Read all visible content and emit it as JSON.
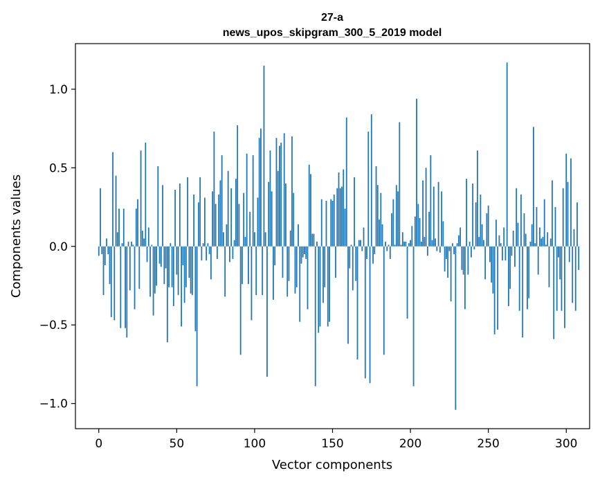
{
  "chart_data": {
    "type": "bar",
    "title_line1": "27-a",
    "title_line2": "news_upos_skipgram_300_5_2019 model",
    "xlabel": "Vector components",
    "ylabel": "Components values",
    "xlim": [
      -15,
      315
    ],
    "ylim": [
      -1.16,
      1.29
    ],
    "xticks": [
      0,
      50,
      100,
      150,
      200,
      250,
      300
    ],
    "xtick_labels": [
      "0",
      "50",
      "100",
      "150",
      "200",
      "250",
      "300"
    ],
    "yticks": [
      -1.0,
      -0.5,
      0.0,
      0.5,
      1.0
    ],
    "ytick_labels": [
      "−1.0",
      "−0.5",
      "0.0",
      "0.5",
      "1.0"
    ],
    "bar_color": "#1f77b4",
    "grid": false,
    "legend": "none",
    "values": [
      -0.06,
      0.37,
      -0.05,
      -0.31,
      -0.12,
      0.05,
      -0.05,
      -0.24,
      -0.45,
      0.6,
      -0.47,
      0.45,
      0.09,
      0.24,
      -0.52,
      0.02,
      0.24,
      -0.52,
      -0.58,
      0.03,
      -0.28,
      0.03,
      0.01,
      -0.4,
      0.24,
      0.3,
      -0.27,
      0.61,
      0.1,
      0.05,
      0.66,
      -0.1,
      0.12,
      -0.32,
      0.01,
      -0.44,
      -0.3,
      -0.25,
      0.51,
      -0.11,
      -0.13,
      0.39,
      -0.24,
      -0.14,
      -0.61,
      -0.26,
      0.02,
      -0.26,
      -0.38,
      0.36,
      -0.18,
      -0.31,
      0.4,
      -0.51,
      -0.12,
      -0.36,
      -0.26,
      0.44,
      -0.2,
      -0.3,
      -0.31,
      0.33,
      -0.54,
      -0.89,
      0.28,
      0.44,
      -0.09,
      0.02,
      0.31,
      -0.09,
      0.02,
      -0.05,
      -0.21,
      0.35,
      0.73,
      0.27,
      -0.08,
      0.33,
      0.42,
      0.58,
      0.09,
      -0.32,
      0.14,
      0.48,
      -0.1,
      0.37,
      -0.08,
      0.04,
      0.43,
      0.77,
      0.27,
      -0.69,
      -0.24,
      0.34,
      0.06,
      0.59,
      -0.24,
      0.22,
      -0.47,
      0.58,
      0.09,
      -0.31,
      0.31,
      0.69,
      0.75,
      -0.31,
      1.15,
      0.09,
      -0.83,
      0.41,
      0.61,
      0.35,
      -0.34,
      -0.12,
      0.69,
      0.48,
      0.64,
      0.66,
      -0.2,
      0.72,
      0.4,
      -0.32,
      -0.22,
      0.1,
      0.7,
      0.34,
      -0.3,
      -0.26,
      0.14,
      -0.48,
      -0.11,
      -0.07,
      -0.05,
      -0.08,
      -0.4,
      0.52,
      0.46,
      0.08,
      0.08,
      -0.89,
      0.03,
      -0.55,
      -0.51,
      0.3,
      -0.36,
      -0.26,
      0.29,
      -0.51,
      -0.48,
      0.3,
      0.29,
      0.33,
      -0.2,
      0.37,
      0.47,
      0.37,
      0.38,
      0.49,
      0.24,
      0.82,
      -0.62,
      -0.14,
      0.01,
      -0.28,
      0.44,
      -0.22,
      -0.72,
      0.04,
      0.04,
      -0.03,
      0.12,
      -0.84,
      -0.08,
      0.73,
      -0.87,
      0.84,
      -0.11,
      -0.05,
      0.51,
      0.39,
      0.17,
      0.34,
      0.14,
      -0.69,
      0.03,
      -0.03,
      0.01,
      -0.08,
      0.21,
      0.3,
      0.01,
      0.39,
      0.35,
      0.79,
      0.01,
      0.09,
      0.03,
      0.03,
      -0.46,
      0.02,
      0.04,
      0.13,
      -0.89,
      0.19,
      0.94,
      0.27,
      0.18,
      0.03,
      0.42,
      0.06,
      0.5,
      -0.06,
      0.22,
      0.58,
      0.04,
      0.38,
      0.05,
      -0.03,
      0.41,
      -0.04,
      0.35,
      0.16,
      -0.16,
      -0.08,
      -0.2,
      -0.03,
      -0.35,
      0.02,
      -0.05,
      -1.04,
      0.02,
      0.07,
      0.12,
      -0.15,
      -0.18,
      -0.4,
      0.43,
      -0.18,
      0.03,
      -0.07,
      0.4,
      -0.02,
      0.28,
      0.61,
      0.06,
      0.33,
      0.14,
      0.04,
      -0.21,
      0.21,
      0.26,
      -0.1,
      -0.23,
      -0.3,
      -0.56,
      0.17,
      -0.53,
      0.07,
      0.02,
      -0.09,
      0.12,
      -0.09,
      1.17,
      -0.38,
      -0.27,
      -0.06,
      0.1,
      -0.13,
      0.37,
      0.15,
      -0.41,
      0.33,
      -0.58,
      0.21,
      0.08,
      -0.4,
      -0.33,
      0.03,
      0.14,
      0.76,
      0.02,
      0.25,
      -0.18,
      0.12,
      0.05,
      0.06,
      0.3,
      0.01,
      0.09,
      -0.26,
      0.05,
      0.42,
      -0.59,
      0.25,
      -0.41,
      -0.07,
      -0.21,
      -0.41,
      0.37,
      -0.52,
      0.59,
      0.41,
      -0.1,
      0.56,
      -0.36,
      0.11,
      -0.41,
      0.28,
      -0.15
    ]
  }
}
